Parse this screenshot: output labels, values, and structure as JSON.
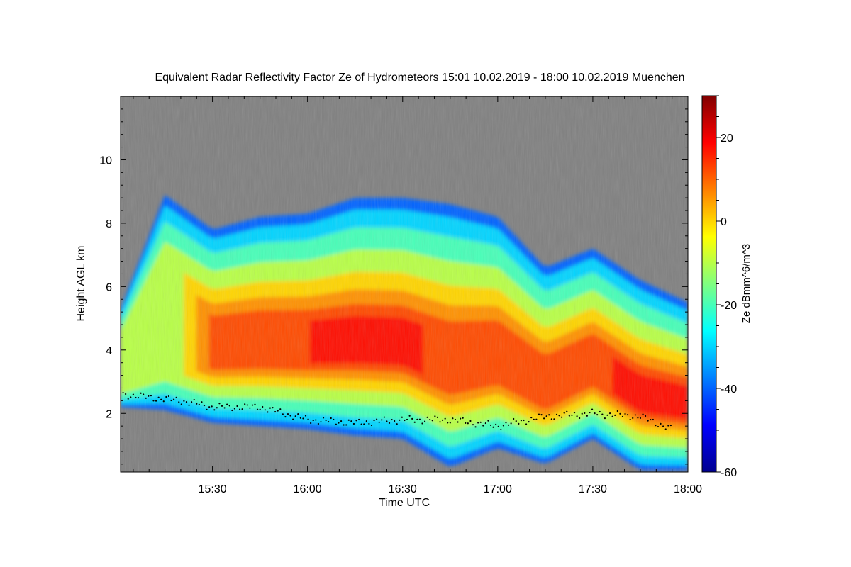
{
  "chart_data": {
    "type": "heatmap",
    "title": "Equivalent Radar Reflectivity Factor Ze of Hydrometeors    15:01 10.02.2019 - 18:00 10.02.2019 Muenchen",
    "xlabel": "Time UTC",
    "ylabel": "Height AGL km",
    "x_range": [
      "15:01",
      "18:00"
    ],
    "x_ticks": [
      "15:30",
      "16:00",
      "16:30",
      "17:00",
      "17:30",
      "18:00"
    ],
    "ylim": [
      0.15,
      12.0
    ],
    "y_ticks": [
      2,
      4,
      6,
      8,
      10
    ],
    "colorbar": {
      "label": "Ze dBmm^6/m^3",
      "range": [
        -60,
        30
      ],
      "ticks": [
        -60,
        -40,
        -20,
        0,
        20
      ],
      "colormap": "jet"
    },
    "background_color": "#808080",
    "echo_profile": {
      "time": [
        "15:01",
        "15:15",
        "15:30",
        "15:45",
        "16:00",
        "16:15",
        "16:30",
        "16:45",
        "17:00",
        "17:15",
        "17:30",
        "17:45",
        "18:00"
      ],
      "echo_top_km": [
        5.3,
        8.9,
        7.8,
        8.2,
        8.3,
        8.8,
        8.8,
        8.6,
        8.2,
        6.6,
        7.2,
        6.2,
        5.5
      ],
      "echo_base_km": [
        2.2,
        2.1,
        1.7,
        1.6,
        1.5,
        1.3,
        1.2,
        0.3,
        0.9,
        0.4,
        1.2,
        0.2,
        0.2
      ],
      "max_ze_dbz": [
        -10,
        -8,
        14,
        15,
        16,
        18,
        17,
        15,
        12,
        13,
        12,
        22,
        24
      ]
    },
    "detection_line": {
      "time": [
        "15:01",
        "15:20",
        "15:30",
        "15:45",
        "16:00",
        "16:15",
        "16:30",
        "16:45",
        "17:00",
        "17:15",
        "17:30",
        "17:45",
        "17:55"
      ],
      "height_km": [
        2.6,
        2.4,
        2.2,
        2.2,
        1.8,
        1.7,
        1.8,
        1.8,
        1.6,
        1.9,
        2.0,
        1.9,
        1.5
      ]
    }
  }
}
